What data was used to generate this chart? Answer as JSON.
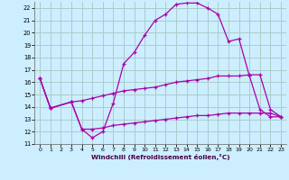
{
  "xlabel": "Windchill (Refroidissement éolien,°C)",
  "bg_color": "#cceeff",
  "grid_color": "#aacccc",
  "line_color": "#aa00aa",
  "xlim": [
    -0.5,
    23.5
  ],
  "ylim": [
    11,
    22.5
  ],
  "xticks": [
    0,
    1,
    2,
    3,
    4,
    5,
    6,
    7,
    8,
    9,
    10,
    11,
    12,
    13,
    14,
    15,
    16,
    17,
    18,
    19,
    20,
    21,
    22,
    23
  ],
  "yticks": [
    11,
    12,
    13,
    14,
    15,
    16,
    17,
    18,
    19,
    20,
    21,
    22
  ],
  "line1_x": [
    0,
    1,
    3,
    4,
    5,
    6,
    7,
    8,
    9,
    10,
    11,
    12,
    13,
    14,
    15,
    16,
    17,
    18,
    19,
    20,
    21,
    22,
    23
  ],
  "line1_y": [
    16.3,
    13.9,
    14.4,
    12.2,
    11.5,
    12.0,
    14.3,
    17.5,
    18.4,
    19.8,
    21.0,
    21.5,
    22.3,
    22.4,
    22.4,
    22.0,
    21.5,
    19.3,
    19.5,
    16.5,
    13.8,
    13.2,
    13.2
  ],
  "line2_x": [
    0,
    1,
    3,
    4,
    5,
    6,
    7,
    8,
    9,
    10,
    11,
    12,
    13,
    14,
    15,
    16,
    17,
    18,
    19,
    20,
    21,
    22,
    23
  ],
  "line2_y": [
    16.3,
    13.9,
    14.4,
    14.5,
    14.7,
    14.9,
    15.1,
    15.3,
    15.4,
    15.5,
    15.6,
    15.8,
    16.0,
    16.1,
    16.2,
    16.3,
    16.5,
    16.5,
    16.5,
    16.6,
    16.6,
    13.8,
    13.2
  ],
  "line3_x": [
    0,
    1,
    3,
    4,
    5,
    6,
    7,
    8,
    9,
    10,
    11,
    12,
    13,
    14,
    15,
    16,
    17,
    18,
    19,
    20,
    21,
    22,
    23
  ],
  "line3_y": [
    16.3,
    13.9,
    14.4,
    12.2,
    12.2,
    12.3,
    12.5,
    12.6,
    12.7,
    12.8,
    12.9,
    13.0,
    13.1,
    13.2,
    13.3,
    13.3,
    13.4,
    13.5,
    13.5,
    13.5,
    13.5,
    13.5,
    13.2
  ]
}
